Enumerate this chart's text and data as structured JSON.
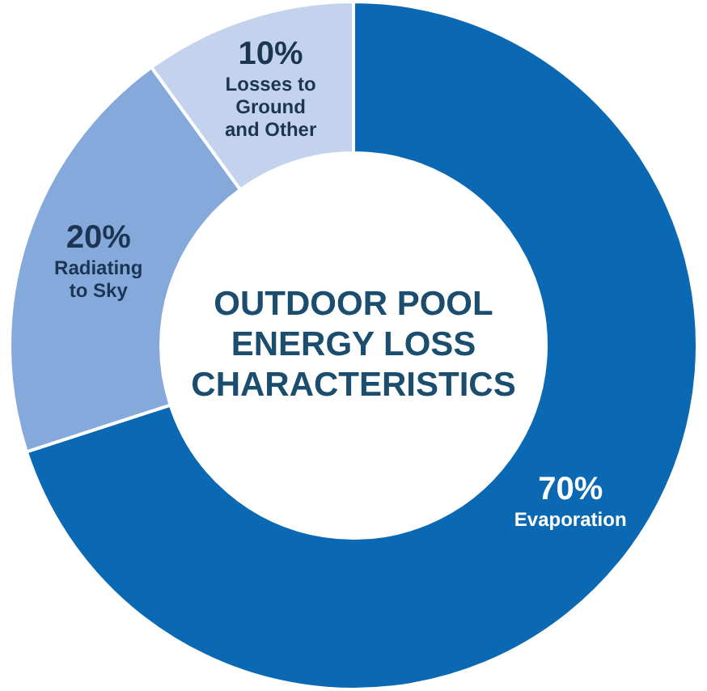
{
  "chart_data": {
    "type": "donut",
    "title": "OUTDOOR POOL ENERGY LOSS CHARACTERISTICS",
    "categories": [
      "Evaporation",
      "Radiating to Sky",
      "Losses to Ground and Other"
    ],
    "values": [
      70,
      20,
      10
    ],
    "value_labels": [
      "70%",
      "20%",
      "10%"
    ],
    "colors": [
      "#0b68b3",
      "#86a9db",
      "#c3d3ee"
    ],
    "legend": false
  }
}
